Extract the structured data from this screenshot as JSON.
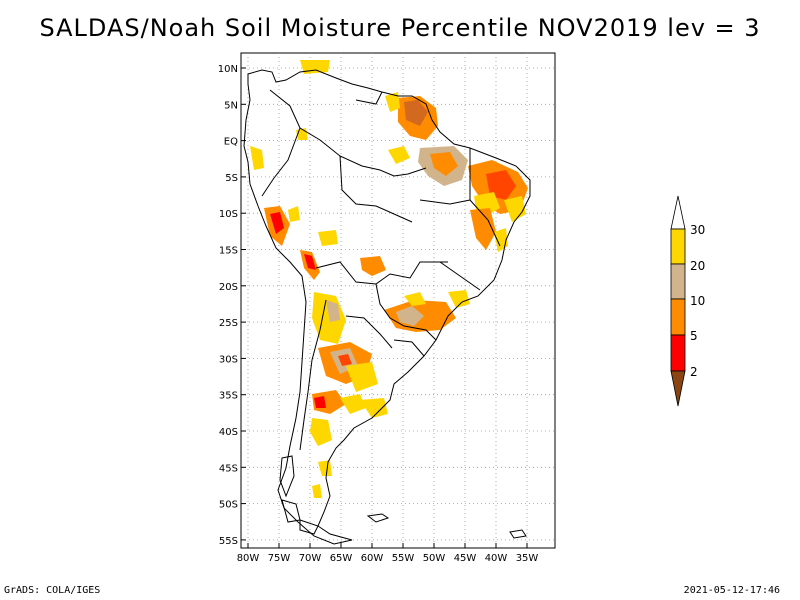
{
  "title": "SALDAS/Noah Soil Moisture Percentile NOV2019 lev = 3",
  "footer": {
    "left": "GrADS: COLA/IGES",
    "right": "2021-05-12-17:46"
  },
  "lat_ticks": [
    "10N",
    "5N",
    "EQ",
    "5S",
    "10S",
    "15S",
    "20S",
    "25S",
    "30S",
    "35S",
    "40S",
    "45S",
    "50S",
    "55S"
  ],
  "lon_ticks": [
    "80W",
    "75W",
    "70W",
    "65W",
    "60W",
    "55W",
    "50W",
    "45W",
    "40W",
    "35W"
  ],
  "colorbar": {
    "labels": [
      "30",
      "20",
      "10",
      "5",
      "2"
    ],
    "colors": [
      "#ffffff",
      "#ffd700",
      "#d2b48c",
      "#ff8c00",
      "#ff0000",
      "#8b4513"
    ]
  },
  "map_extent": {
    "lon": [
      -81,
      -33
    ],
    "lat": [
      -56,
      11
    ]
  },
  "graticule": "dotted grid every 5 degrees",
  "region": "South America"
}
